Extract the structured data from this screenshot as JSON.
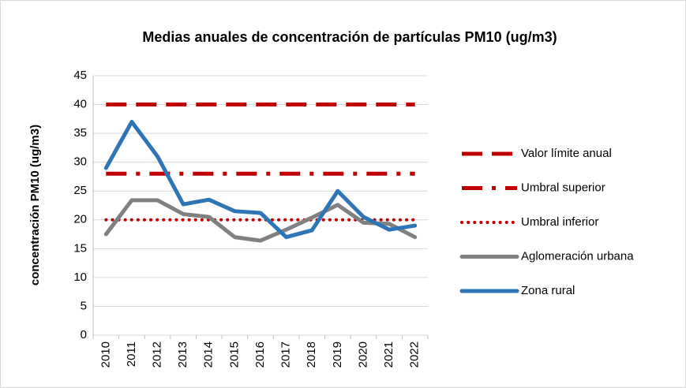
{
  "chart_data": {
    "type": "line",
    "title": "Medias anuales de concentración de partículas PM10 (ug/m3)",
    "y_label": "concentración PM10 (ug/m3)",
    "categories": [
      "2010",
      "2011",
      "2012",
      "2013",
      "2014",
      "2015",
      "2016",
      "2017",
      "2018",
      "2019",
      "2020",
      "2021",
      "2022"
    ],
    "series": [
      {
        "name": "Valor límite anual",
        "color": "#c00000",
        "dash": "dash",
        "values": [
          40,
          40,
          40,
          40,
          40,
          40,
          40,
          40,
          40,
          40,
          40,
          40,
          40
        ]
      },
      {
        "name": "Umbral superior",
        "color": "#c00000",
        "dash": "dashdot",
        "values": [
          28,
          28,
          28,
          28,
          28,
          28,
          28,
          28,
          28,
          28,
          28,
          28,
          28
        ]
      },
      {
        "name": "Umbral inferior",
        "color": "#c00000",
        "dash": "dot",
        "values": [
          20,
          20,
          20,
          20,
          20,
          20,
          20,
          20,
          20,
          20,
          20,
          20,
          20
        ]
      },
      {
        "name": "Aglomeración  urbana",
        "color": "#808080",
        "dash": "solid",
        "values": [
          17.5,
          23.4,
          23.4,
          21,
          20.5,
          17,
          16.4,
          18.3,
          20.4,
          22.6,
          19.5,
          19.3,
          17
        ]
      },
      {
        "name": "Zona rural",
        "color": "#2e75b6",
        "dash": "solid",
        "values": [
          29,
          37,
          31,
          22.7,
          23.5,
          21.5,
          21.2,
          17,
          18.2,
          25,
          20.5,
          18.3,
          19
        ]
      }
    ],
    "ylim": [
      0,
      45
    ],
    "yticks": [
      0,
      5,
      10,
      15,
      20,
      25,
      30,
      35,
      40,
      45
    ],
    "grid": true,
    "legend": "right"
  }
}
